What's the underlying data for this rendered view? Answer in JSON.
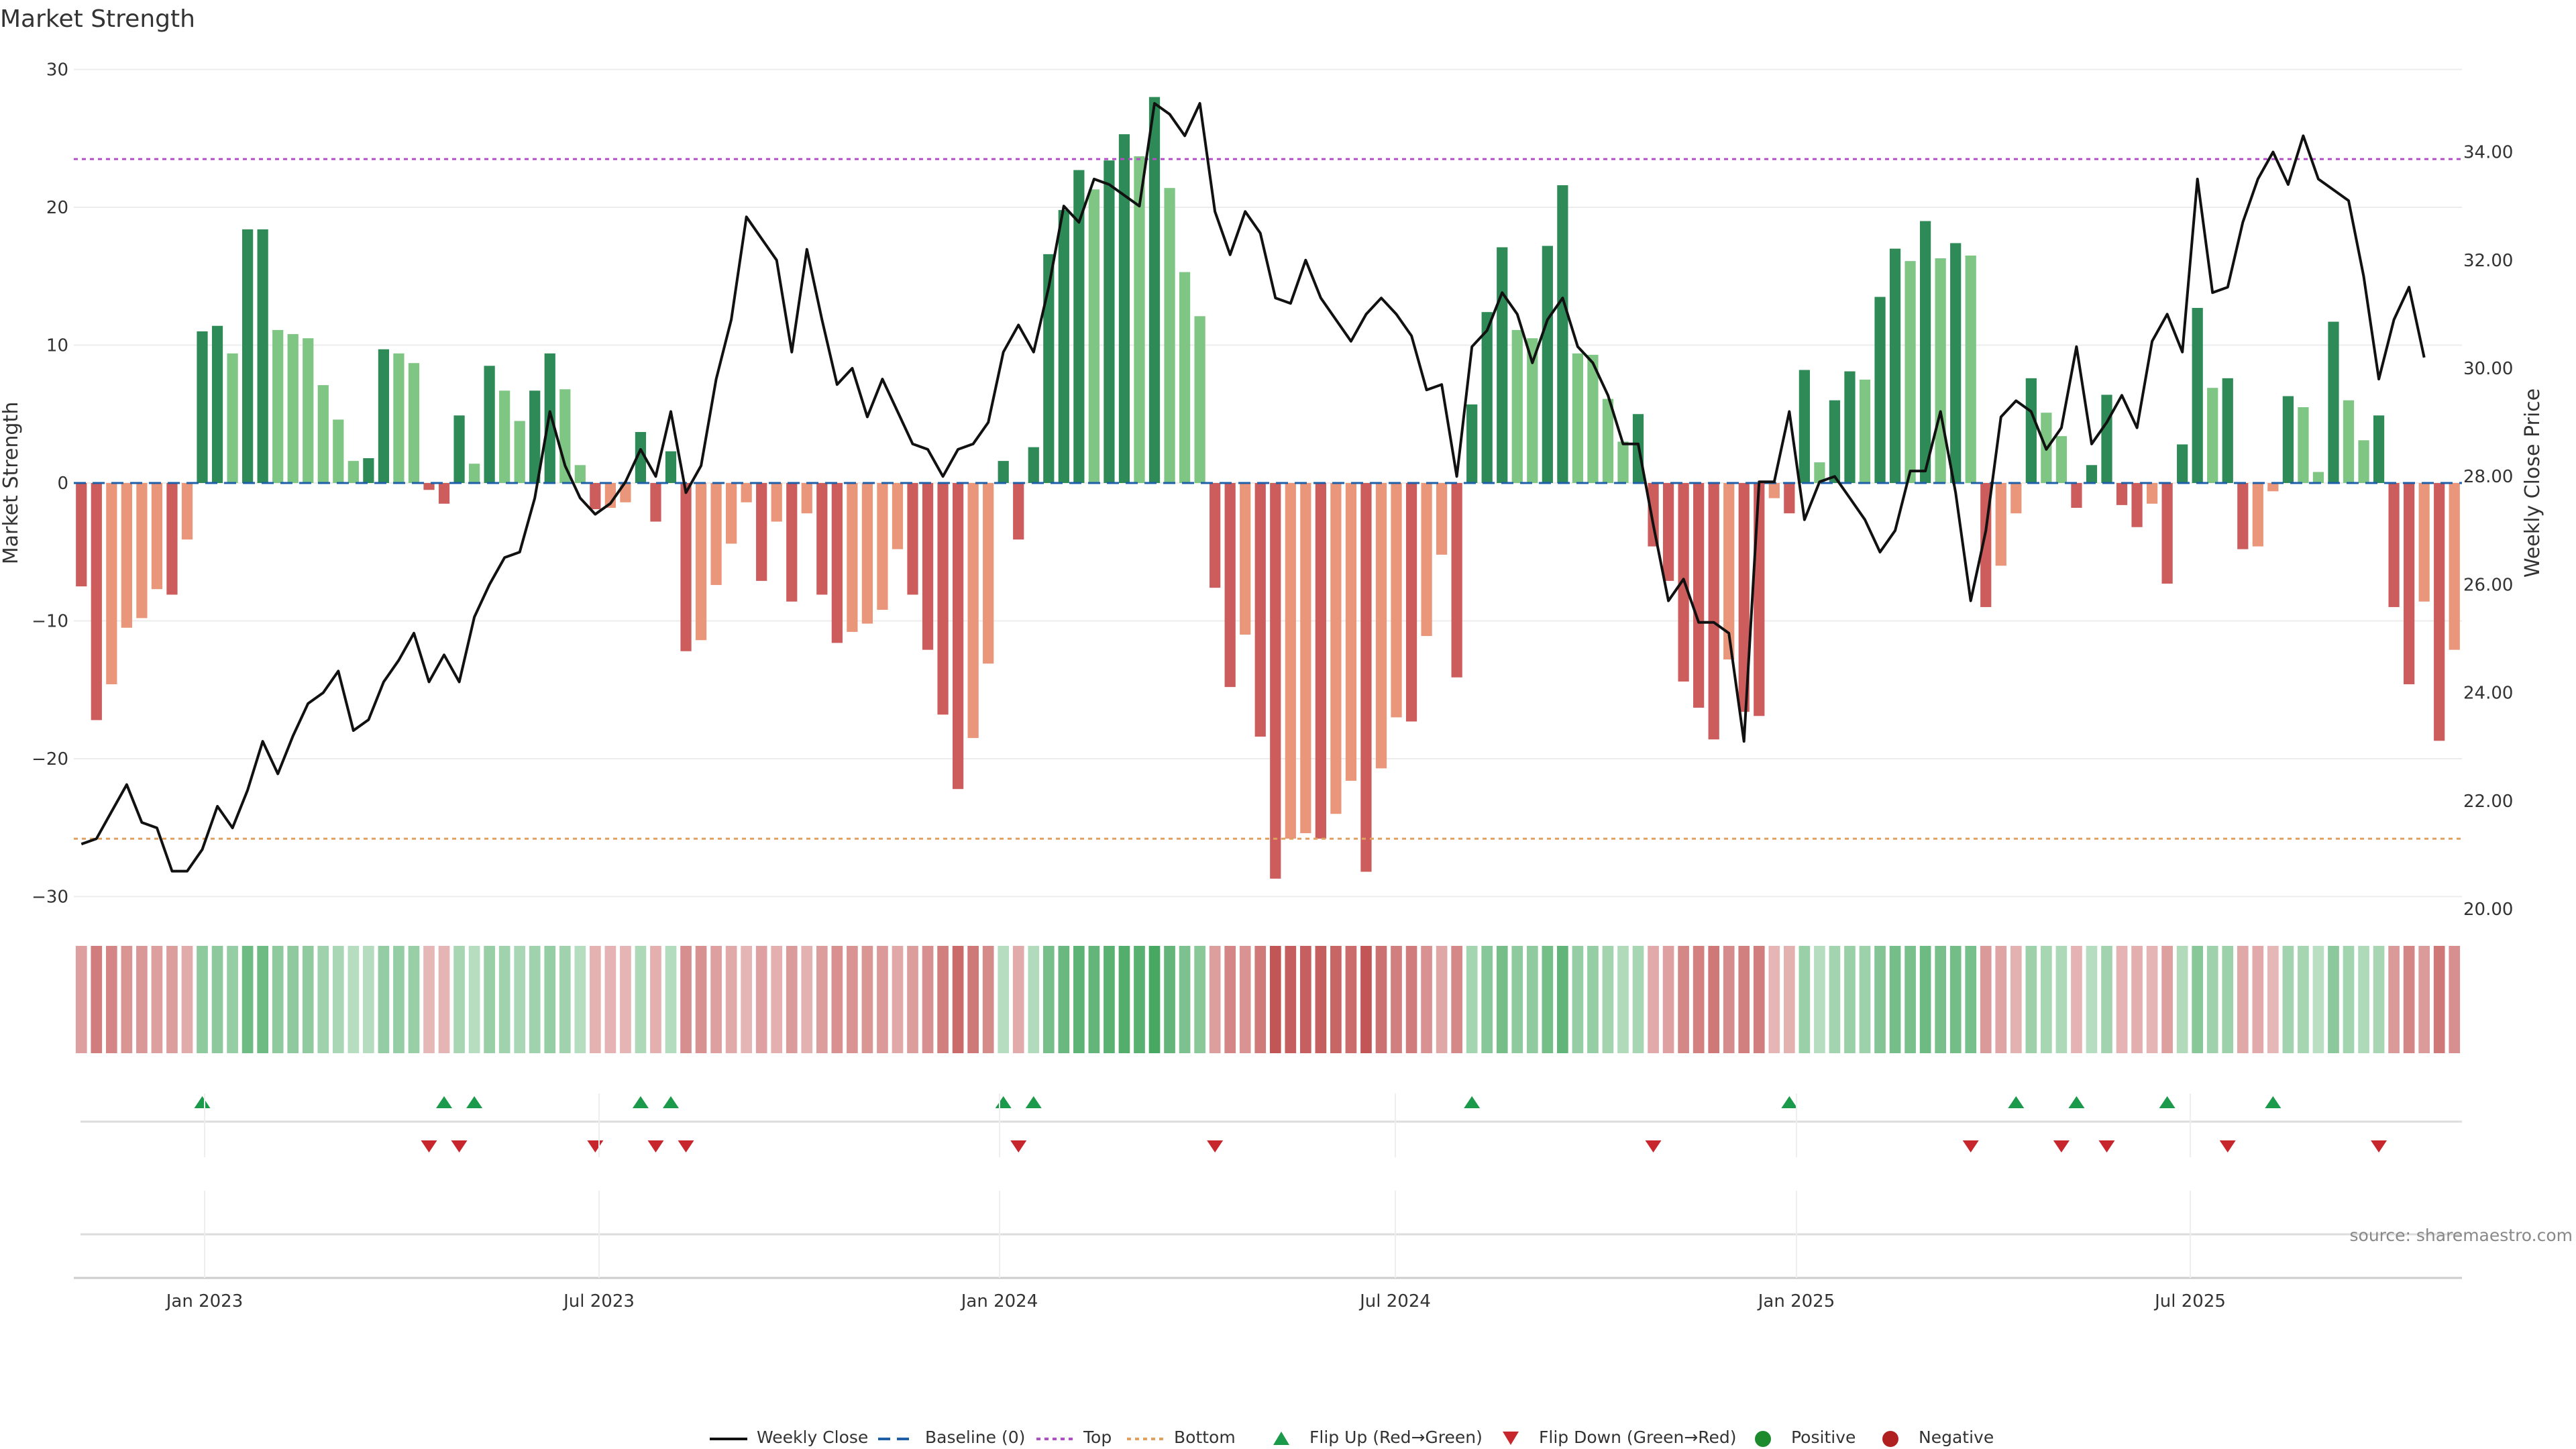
{
  "chart_data": {
    "type": "bar",
    "title": "Market Strength",
    "ylabel": "Market Strength",
    "y2label": "Weekly Close Price",
    "ylim": [
      -32,
      30
    ],
    "y2lim": [
      20,
      35
    ],
    "yticks": [
      "30",
      "20",
      "10",
      "0",
      "−10",
      "−20",
      "−30"
    ],
    "y2ticks": [
      "34.00",
      "32.00",
      "30.00",
      "28.00",
      "26.00",
      "24.00",
      "22.00",
      "20.00"
    ],
    "xticks": [
      "Jan 2023",
      "Jul 2023",
      "Jan 2024",
      "Jul 2024",
      "Jan 2025",
      "Jul 2025"
    ],
    "top_line": 23.5,
    "bottom_line": -25.8,
    "source": "source: sharemaestro.com",
    "colors": {
      "pos_strong": "#2e8b57",
      "pos_weak": "#7fc584",
      "neg_strong": "#cd5c5c",
      "neg_weak": "#e9967a",
      "close": "#111111",
      "baseline": "#1f5fa8",
      "top": "#b34fc6",
      "bottom": "#e0a060",
      "flip_up": "#1a9a4a",
      "flip_down": "#c8262d"
    },
    "series": [
      {
        "name": "Market Strength",
        "values": [
          -7.5,
          -17.2,
          -14.6,
          -10.5,
          -9.8,
          -7.7,
          -8.1,
          -4.1,
          11,
          11.4,
          9.4,
          18.4,
          18.4,
          11.1,
          10.8,
          10.5,
          7.1,
          4.6,
          1.6,
          1.8,
          9.7,
          9.4,
          8.7,
          -0.5,
          -1.5,
          4.9,
          1.4,
          8.5,
          6.7,
          4.5,
          6.7,
          9.4,
          6.8,
          1.3,
          -1.9,
          -1.8,
          -1.4,
          3.7,
          -2.8,
          2.3,
          -12.2,
          -11.4,
          -7.4,
          -4.4,
          -1.4,
          -7.1,
          -2.8,
          -8.6,
          -2.2,
          -8.1,
          -11.6,
          -10.8,
          -10.2,
          -9.2,
          -4.8,
          -8.1,
          -12.1,
          -16.8,
          -22.2,
          -18.5,
          -13.1,
          1.6,
          -4.1,
          2.6,
          16.6,
          19.8,
          22.7,
          21.3,
          23.4,
          25.3,
          23.7,
          28,
          21.4,
          15.3,
          12.1,
          -7.6,
          -14.8,
          -11,
          -18.4,
          -28.7,
          -25.8,
          -25.4,
          -25.8,
          -24,
          -21.6,
          -28.2,
          -20.7,
          -17,
          -17.3,
          -11.1,
          -5.2,
          -14.1,
          5.7,
          12.4,
          17.1,
          11.1,
          10.5,
          17.2,
          21.6,
          9.4,
          9.3,
          6.1,
          3,
          5,
          -4.6,
          -7.1,
          -14.4,
          -16.3,
          -18.6,
          -12.8,
          -16.6,
          -16.9,
          -1.1,
          -2.2,
          8.2,
          1.5,
          6,
          8.1,
          7.5,
          13.5,
          17,
          16.1,
          19,
          16.3,
          17.4,
          16.5,
          -9,
          -6,
          -2.2,
          7.6,
          5.1,
          3.4,
          -1.8,
          1.3,
          6.4,
          -1.6,
          -3.2,
          -1.5,
          -7.3,
          2.8,
          12.7,
          6.9,
          7.6,
          -4.8,
          -4.6,
          -0.6,
          6.3,
          5.5,
          0.8,
          11.7,
          6,
          3.1,
          4.9,
          -9,
          -14.6,
          -8.6,
          -18.7,
          -12.1
        ]
      },
      {
        "name": "Weekly Close",
        "values": [
          21.2,
          21.3,
          21.8,
          22.3,
          21.6,
          21.5,
          20.7,
          20.7,
          21.1,
          21.9,
          21.5,
          22.2,
          23.1,
          22.5,
          23.2,
          23.8,
          24,
          24.4,
          23.3,
          23.5,
          24.2,
          24.6,
          25.1,
          24.2,
          24.7,
          24.2,
          25.4,
          26,
          26.5,
          26.6,
          27.6,
          29.2,
          28.2,
          27.6,
          27.3,
          27.5,
          27.9,
          28.5,
          28,
          29.2,
          27.7,
          28.2,
          29.8,
          30.9,
          32.8,
          32.4,
          32,
          30.3,
          32.2,
          30.9,
          29.7,
          30,
          29.1,
          29.8,
          29.2,
          28.6,
          28.5,
          28,
          28.5,
          28.6,
          29,
          30.3,
          30.8,
          30.3,
          31.5,
          33,
          32.7,
          33.5,
          33.4,
          33.2,
          33,
          34.9,
          34.7,
          34.3,
          34.9,
          32.9,
          32.1,
          32.9,
          32.5,
          31.3,
          31.2,
          32,
          31.3,
          30.9,
          30.5,
          31,
          31.3,
          31,
          30.6,
          29.6,
          29.7,
          28,
          30.4,
          30.7,
          31.4,
          31,
          30.1,
          30.9,
          31.3,
          30.4,
          30.1,
          29.5,
          28.6,
          28.6,
          27.1,
          25.7,
          26.1,
          25.3,
          25.3,
          25.1,
          23.1,
          27.9,
          27.9,
          29.2,
          27.2,
          27.9,
          28,
          27.6,
          27.2,
          26.6,
          27,
          28.1,
          28.1,
          29.2,
          27.7,
          25.7,
          27,
          29.1,
          29.4,
          29.2,
          28.5,
          28.9,
          30.4,
          28.6,
          29,
          29.5,
          28.9,
          30.5,
          31,
          30.3,
          33.5,
          31.4,
          31.5,
          32.7,
          33.5,
          34,
          33.4,
          34.3,
          33.5,
          33.3,
          33.1,
          31.7,
          29.8,
          30.9,
          31.5,
          30.2
        ]
      },
      {
        "name": "Flip Up (Red→Green)",
        "indices": [
          8,
          24,
          26,
          37,
          39,
          61,
          63,
          92,
          113,
          128,
          132,
          138,
          145
        ]
      },
      {
        "name": "Flip Down (Green→Red)",
        "indices": [
          23,
          25,
          34,
          38,
          40,
          62,
          75,
          104,
          125,
          131,
          134,
          142,
          152
        ]
      }
    ]
  },
  "legend": {
    "items": [
      "Weekly Close",
      "Baseline (0)",
      "Top",
      "Bottom",
      "Flip Up (Red→Green)",
      "Flip Down (Green→Red)",
      "Positive",
      "Negative"
    ]
  }
}
